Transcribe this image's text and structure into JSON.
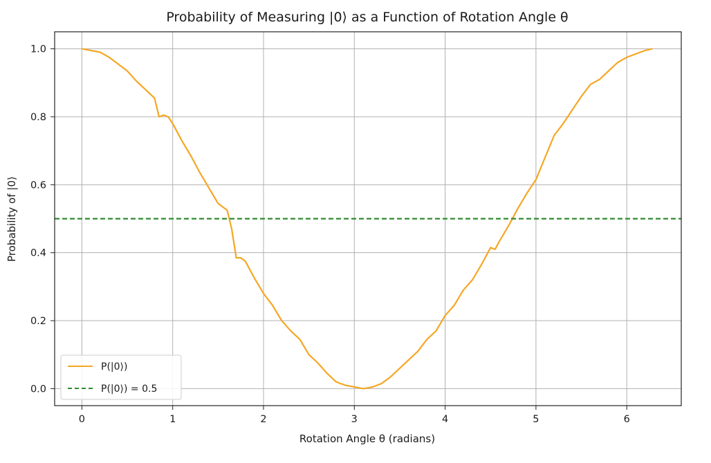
{
  "chart_data": {
    "type": "line",
    "title": "Probability of Measuring |0⟩ as a Function of Rotation Angle θ",
    "xlabel": "Rotation Angle θ (radians)",
    "ylabel": "Probability of |0⟩",
    "xlim": [
      -0.3,
      6.6
    ],
    "ylim": [
      -0.05,
      1.05
    ],
    "x_ticks": [
      0,
      1,
      2,
      3,
      4,
      5,
      6
    ],
    "y_ticks": [
      0.0,
      0.2,
      0.4,
      0.6,
      0.8,
      1.0
    ],
    "x_tick_labels": [
      "0",
      "1",
      "2",
      "3",
      "4",
      "5",
      "6"
    ],
    "y_tick_labels": [
      "0.0",
      "0.2",
      "0.4",
      "0.6",
      "0.8",
      "1.0"
    ],
    "grid": true,
    "legend_position": "lower-left",
    "series": [
      {
        "name": "P(|0⟩)",
        "color": "#f5a623",
        "style": "solid",
        "x": [
          0.0,
          0.1,
          0.2,
          0.3,
          0.4,
          0.5,
          0.6,
          0.7,
          0.8,
          0.85,
          0.9,
          0.95,
          1.0,
          1.1,
          1.2,
          1.3,
          1.4,
          1.5,
          1.6,
          1.65,
          1.7,
          1.75,
          1.8,
          1.9,
          2.0,
          2.1,
          2.2,
          2.3,
          2.4,
          2.5,
          2.6,
          2.7,
          2.8,
          2.9,
          3.0,
          3.1,
          3.2,
          3.3,
          3.4,
          3.5,
          3.6,
          3.7,
          3.8,
          3.9,
          4.0,
          4.1,
          4.2,
          4.3,
          4.4,
          4.5,
          4.55,
          4.6,
          4.7,
          4.8,
          4.9,
          5.0,
          5.1,
          5.2,
          5.3,
          5.4,
          5.5,
          5.6,
          5.7,
          5.8,
          5.9,
          6.0,
          6.1,
          6.2,
          6.283
        ],
        "values": [
          1.0,
          0.995,
          0.99,
          0.975,
          0.955,
          0.935,
          0.905,
          0.88,
          0.855,
          0.8,
          0.805,
          0.8,
          0.78,
          0.73,
          0.685,
          0.635,
          0.59,
          0.545,
          0.525,
          0.47,
          0.385,
          0.385,
          0.375,
          0.325,
          0.28,
          0.245,
          0.2,
          0.17,
          0.145,
          0.1,
          0.075,
          0.045,
          0.02,
          0.01,
          0.005,
          0.0,
          0.005,
          0.015,
          0.035,
          0.06,
          0.085,
          0.11,
          0.145,
          0.17,
          0.215,
          0.245,
          0.29,
          0.32,
          0.365,
          0.415,
          0.41,
          0.435,
          0.48,
          0.53,
          0.575,
          0.615,
          0.68,
          0.745,
          0.78,
          0.82,
          0.86,
          0.895,
          0.91,
          0.935,
          0.96,
          0.975,
          0.985,
          0.995,
          1.0
        ]
      },
      {
        "name": "P(|0⟩) = 0.5",
        "color": "#2e8b2e",
        "style": "dashed",
        "x": [
          -0.3,
          6.6
        ],
        "values": [
          0.5,
          0.5
        ]
      }
    ]
  }
}
